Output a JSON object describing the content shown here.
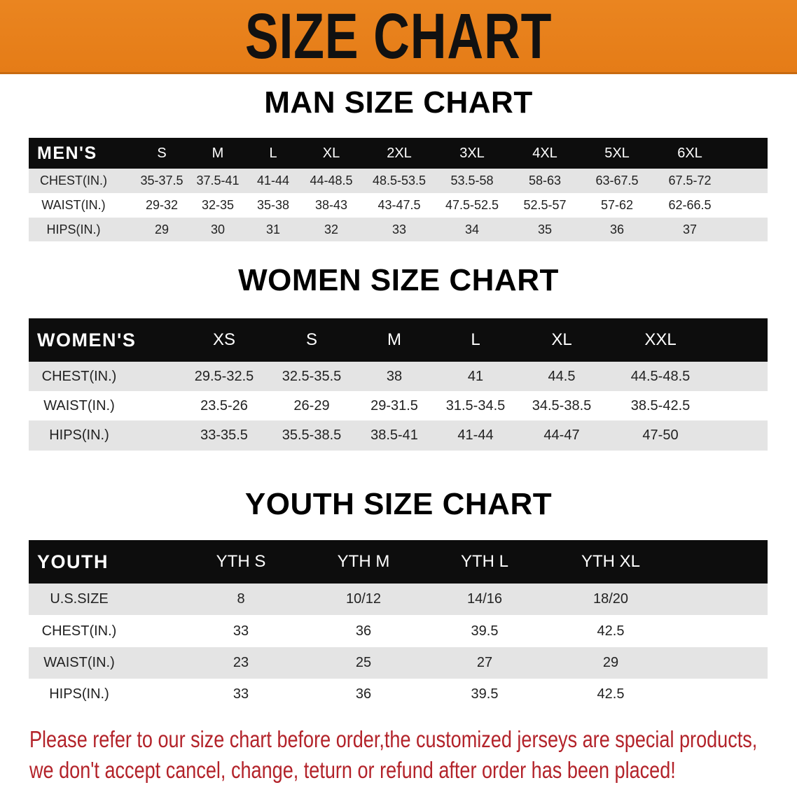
{
  "banner": {
    "title": "SIZE CHART",
    "color": "#E8801E"
  },
  "men": {
    "title": "MAN SIZE CHART",
    "header": [
      "MEN'S",
      "S",
      "M",
      "L",
      "XL",
      "2XL",
      "3XL",
      "4XL",
      "5XL",
      "6XL"
    ],
    "rows": [
      [
        "CHEST(IN.)",
        "35-37.5",
        "37.5-41",
        "41-44",
        "44-48.5",
        "48.5-53.5",
        "53.5-58",
        "58-63",
        "63-67.5",
        "67.5-72"
      ],
      [
        "WAIST(IN.)",
        "29-32",
        "32-35",
        "35-38",
        "38-43",
        "43-47.5",
        "47.5-52.5",
        "52.5-57",
        "57-62",
        "62-66.5"
      ],
      [
        "HIPS(IN.)",
        "29",
        "30",
        "31",
        "32",
        "33",
        "34",
        "35",
        "36",
        "37"
      ]
    ]
  },
  "women": {
    "title": "WOMEN SIZE CHART",
    "header": [
      "WOMEN'S",
      "XS",
      "S",
      "M",
      "L",
      "XL",
      "XXL"
    ],
    "rows": [
      [
        "CHEST(IN.)",
        "29.5-32.5",
        "32.5-35.5",
        "38",
        "41",
        "44.5",
        "44.5-48.5"
      ],
      [
        "WAIST(IN.)",
        "23.5-26",
        "26-29",
        "29-31.5",
        "31.5-34.5",
        "34.5-38.5",
        "38.5-42.5"
      ],
      [
        "HIPS(IN.)",
        "33-35.5",
        "35.5-38.5",
        "38.5-41",
        "41-44",
        "44-47",
        "47-50"
      ]
    ]
  },
  "youth": {
    "title": "YOUTH SIZE CHART",
    "header": [
      "YOUTH",
      "YTH S",
      "YTH M",
      "YTH L",
      "YTH XL"
    ],
    "rows": [
      [
        "U.S.SIZE",
        "8",
        "10/12",
        "14/16",
        "18/20"
      ],
      [
        "CHEST(IN.)",
        "33",
        "36",
        "39.5",
        "42.5"
      ],
      [
        "WAIST(IN.)",
        "23",
        "25",
        "27",
        "29"
      ],
      [
        "HIPS(IN.)",
        "33",
        "36",
        "39.5",
        "42.5"
      ]
    ]
  },
  "notice": {
    "line1": "Please refer to our size chart before order,the customized jerseys are special products,",
    "line2": "we don't accept cancel, change, teturn or refund after order has been placed!",
    "color": "#B3232A"
  }
}
